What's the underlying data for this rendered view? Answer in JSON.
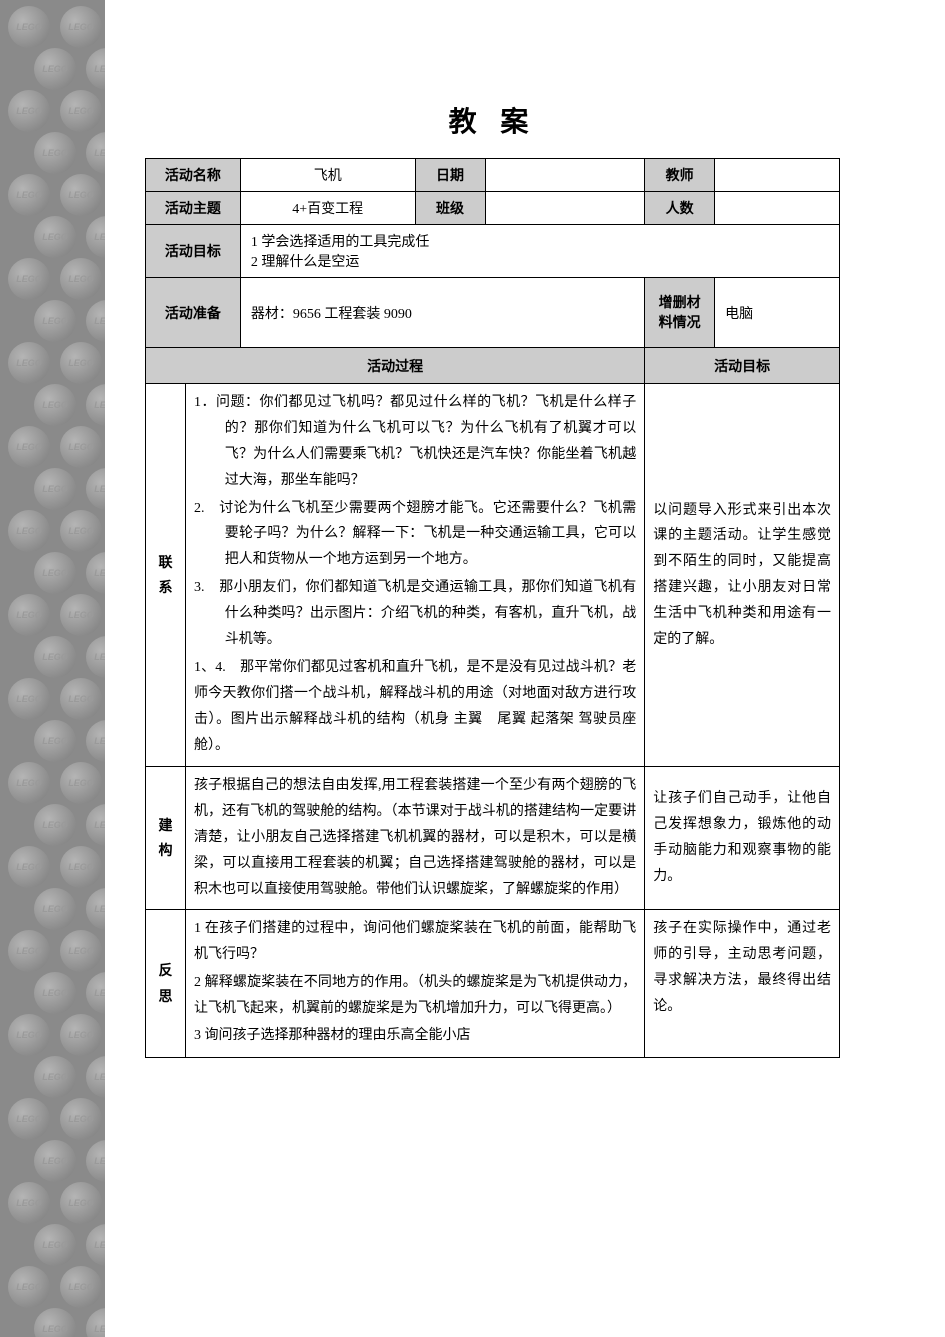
{
  "title": "教 案",
  "headers": {
    "activity_name": "活动名称",
    "date": "日期",
    "teacher": "教师",
    "activity_theme": "活动主题",
    "class": "班级",
    "people_count": "人数",
    "activity_goal": "活动目标",
    "activity_prep": "活动准备",
    "material_status": "增删材料情况",
    "activity_process": "活动过程",
    "activity_goal2": "活动目标"
  },
  "values": {
    "activity_name_val": "飞机",
    "activity_theme_val": "4+百变工程",
    "date_val": "",
    "teacher_val": "",
    "class_val": "",
    "people_val": "",
    "goal_line1": "1 学会选择适用的工具完成任",
    "goal_line2": "2 理解什么是空运",
    "prep_val": "器材：9656 工程套装 9090",
    "material_val": "电脑"
  },
  "sections": {
    "connect_label": "联系",
    "connect_body_1": "1．问题：你们都见过飞机吗？都见过什么样的飞机？飞机是什么样子的？那你们知道为什么飞机可以飞？为什么飞机有了机翼才可以飞？为什么人们需要乘飞机？飞机快还是汽车快？你能坐着飞机越过大海，那坐车能吗？",
    "connect_body_2": "2.　讨论为什么飞机至少需要两个翅膀才能飞。它还需要什么？飞机需要轮子吗？为什么？解释一下：飞机是一种交通运输工具，它可以把人和货物从一个地方运到另一个地方。",
    "connect_body_3": "3.　那小朋友们，你们都知道飞机是交通运输工具，那你们知道飞机有什么种类吗？出示图片：介绍飞机的种类，有客机，直升飞机，战斗机等。",
    "connect_body_4": "1、4.　那平常你们都见过客机和直升飞机，是不是没有见过战斗机？老师今天教你们搭一个战斗机，解释战斗机的用途（对地面对敌方进行攻击）。图片出示解释战斗机的结构（机身 主翼　尾翼 起落架 驾驶员座舱）。",
    "connect_goal": "以问题导入形式来引出本次课的主题活动。让学生感觉到不陌生的同时，又能提高搭建兴趣，让小朋友对日常生活中飞机种类和用途有一定的了解。",
    "build_label": "建构",
    "build_body": "孩子根据自己的想法自由发挥,用工程套装搭建一个至少有两个翅膀的飞机，还有飞机的驾驶舱的结构。（本节课对于战斗机的搭建结构一定要讲清楚，让小朋友自己选择搭建飞机机翼的器材，可以是积木，可以是横梁，可以直接用工程套装的机翼；自己选择搭建驾驶舱的器材，可以是积木也可以直接使用驾驶舱。带他们认识螺旋桨，了解螺旋桨的作用）",
    "build_goal": "让孩子们自己动手，让他自己发挥想象力，锻炼他的动手动脑能力和观察事物的能力。",
    "reflect_label": "反思",
    "reflect_body_1": "1 在孩子们搭建的过程中，询问他们螺旋桨装在飞机的前面，能帮助飞机飞行吗？",
    "reflect_body_2": "2 解释螺旋桨装在不同地方的作用。（机头的螺旋桨是为飞机提供动力，让飞机飞起来，机翼前的螺旋桨是为飞机增加升力，可以飞得更高。）",
    "reflect_body_3": "3 询问孩子选择那种器材的理由乐高全能小店",
    "reflect_goal": "孩子在实际操作中，通过老师的引导，主动思考问题，寻求解决方法，最终得出结论。"
  },
  "style": {
    "page_bg": "#ffffff",
    "sidebar_bg": "#8a8a8a",
    "header_bg": "#cccccc",
    "border_color": "#000000",
    "title_fontsize": 28,
    "body_fontsize": 14
  }
}
